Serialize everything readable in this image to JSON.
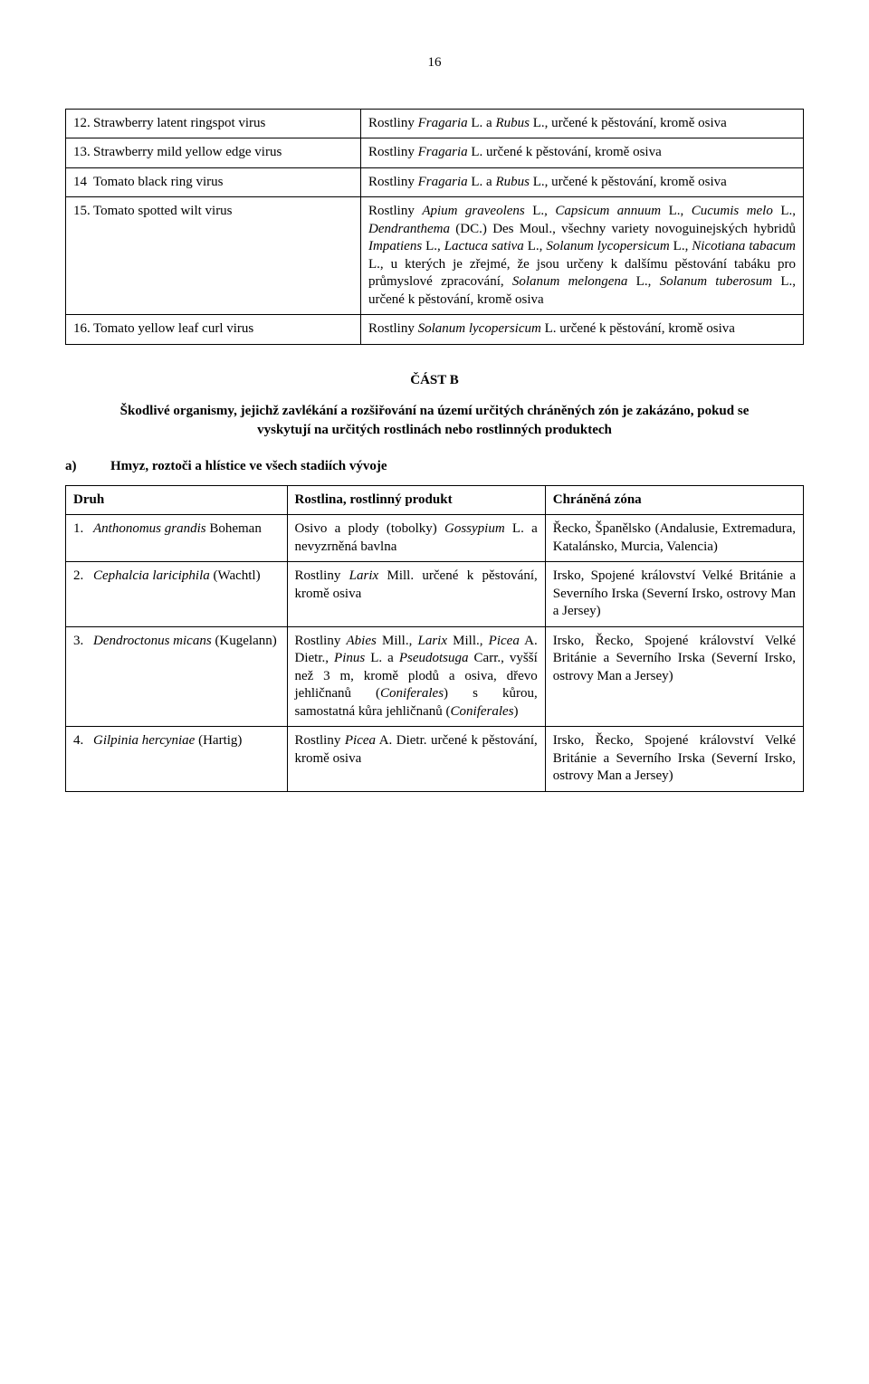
{
  "page_number": "16",
  "table_a": {
    "rows": [
      {
        "num": "12.",
        "name": "Strawberry latent ringspot virus",
        "desc_parts": [
          {
            "t": "Rostliny "
          },
          {
            "t": "Fragaria",
            "i": true
          },
          {
            "t": " L. a "
          },
          {
            "t": "Rubus",
            "i": true
          },
          {
            "t": " L., určené k pěstování, kromě osiva"
          }
        ]
      },
      {
        "num": "13.",
        "name": "Strawberry mild yellow edge virus",
        "desc_parts": [
          {
            "t": "Rostliny "
          },
          {
            "t": "Fragaria",
            "i": true
          },
          {
            "t": " L. určené k pěstování, kromě osiva"
          }
        ]
      },
      {
        "num": "14",
        "name": "Tomato black ring virus",
        "desc_parts": [
          {
            "t": "Rostliny "
          },
          {
            "t": "Fragaria",
            "i": true
          },
          {
            "t": " L. a "
          },
          {
            "t": "Rubus",
            "i": true
          },
          {
            "t": " L., určené k pěstování, kromě osiva"
          }
        ]
      },
      {
        "num": "15.",
        "name": "Tomato spotted wilt virus",
        "desc_parts": [
          {
            "t": "Rostliny "
          },
          {
            "t": "Apium graveolens",
            "i": true
          },
          {
            "t": " L., "
          },
          {
            "t": "Capsicum annuum",
            "i": true
          },
          {
            "t": " L., "
          },
          {
            "t": "Cucumis melo",
            "i": true
          },
          {
            "t": " L., "
          },
          {
            "t": "Dendranthema",
            "i": true
          },
          {
            "t": " (DC.) Des Moul., všechny variety novoguinejských hybridů "
          },
          {
            "t": "Impatiens",
            "i": true
          },
          {
            "t": " L., "
          },
          {
            "t": "Lactuca sativa",
            "i": true
          },
          {
            "t": " L., "
          },
          {
            "t": "Solanum lycopersicum",
            "i": true
          },
          {
            "t": " L., "
          },
          {
            "t": "Nicotiana tabacum",
            "i": true
          },
          {
            "t": " L., u kterých je zřejmé, že jsou určeny k dalšímu pěstování tabáku pro průmyslové zpracování, "
          },
          {
            "t": "Solanum melongena",
            "i": true
          },
          {
            "t": " L., "
          },
          {
            "t": "Solanum tuberosum",
            "i": true
          },
          {
            "t": " L., určené k pěstování, kromě osiva"
          }
        ]
      },
      {
        "num": "16.",
        "name": "Tomato yellow leaf curl virus",
        "desc_parts": [
          {
            "t": "Rostliny "
          },
          {
            "t": "Solanum lycopersicum",
            "i": true
          },
          {
            "t": " L. určené k pěstování, kromě osiva"
          }
        ]
      }
    ]
  },
  "part_b": {
    "title": "ČÁST B",
    "desc": "Škodlivé organismy, jejichž zavlékání a rozšiřování na území určitých chráněných zón je zakázáno, pokud se vyskytují na určitých rostlinách nebo rostlinných produktech",
    "list_letter": "a)",
    "list_title": "Hmyz, roztoči a hlístice ve všech stadiích vývoje"
  },
  "table_b": {
    "headers": [
      "Druh",
      "Rostlina, rostlinný produkt",
      "Chráněná zóna"
    ],
    "rows": [
      {
        "num": "1.",
        "name_parts": [
          {
            "t": "Anthonomus grandis",
            "i": true
          },
          {
            "t": " Boheman"
          }
        ],
        "col2_parts": [
          {
            "t": "Osivo a plody (tobolky) "
          },
          {
            "t": "Gossypium",
            "i": true
          },
          {
            "t": " L. a nevyzrněná bavlna"
          }
        ],
        "col3_parts": [
          {
            "t": "Řecko, Španělsko (Andalusie, Extremadura, Katalánsko, Murcia, Valencia)"
          }
        ]
      },
      {
        "num": "2.",
        "name_parts": [
          {
            "t": "Cephalcia lariciphila",
            "i": true
          },
          {
            "t": " (Wachtl)"
          }
        ],
        "col2_parts": [
          {
            "t": "Rostliny "
          },
          {
            "t": "Larix",
            "i": true
          },
          {
            "t": " Mill. určené k pěstování, kromě osiva"
          }
        ],
        "col3_parts": [
          {
            "t": "Irsko, Spojené království Velké Británie a Severního Irska (Severní Irsko, ostrovy Man a Jersey)"
          }
        ]
      },
      {
        "num": "3.",
        "name_parts": [
          {
            "t": "Dendroctonus micans",
            "i": true
          },
          {
            "t": " (Kugelann)"
          }
        ],
        "col2_parts": [
          {
            "t": "Rostliny "
          },
          {
            "t": "Abies",
            "i": true
          },
          {
            "t": " Mill., "
          },
          {
            "t": "Larix",
            "i": true
          },
          {
            "t": " Mill., "
          },
          {
            "t": "Picea",
            "i": true
          },
          {
            "t": " A. Dietr., "
          },
          {
            "t": "Pinus",
            "i": true
          },
          {
            "t": " L. a "
          },
          {
            "t": "Pseudotsuga",
            "i": true
          },
          {
            "t": " Carr., vyšší než 3 m, kromě plodů a osiva, dřevo jehličnanů ("
          },
          {
            "t": "Coniferales",
            "i": true
          },
          {
            "t": ") s kůrou, samostatná kůra jehličnanů ("
          },
          {
            "t": "Coniferales",
            "i": true
          },
          {
            "t": ")"
          }
        ],
        "col3_parts": [
          {
            "t": "Irsko, Řecko, Spojené království Velké Británie a Severního Irska (Severní Irsko, ostrovy Man a Jersey)"
          }
        ]
      },
      {
        "num": "4.",
        "name_parts": [
          {
            "t": "Gilpinia hercyniae",
            "i": true
          },
          {
            "t": " (Hartig)"
          }
        ],
        "col2_parts": [
          {
            "t": "Rostliny "
          },
          {
            "t": "Picea",
            "i": true
          },
          {
            "t": " A. Dietr. určené k pěstování, kromě osiva"
          }
        ],
        "col3_parts": [
          {
            "t": "Irsko, Řecko, Spojené království Velké Británie a Severního Irska (Severní Irsko, ostrovy Man a Jersey)"
          }
        ]
      }
    ]
  }
}
